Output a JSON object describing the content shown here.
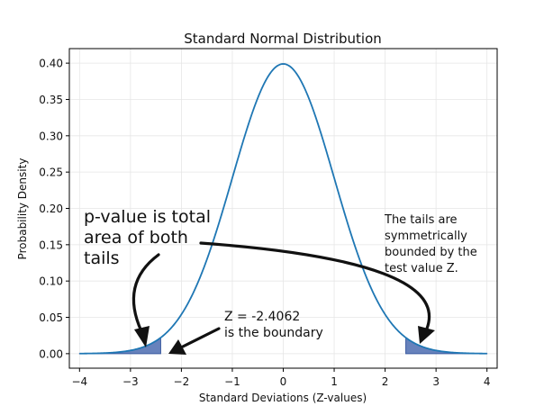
{
  "chart_data": {
    "type": "line",
    "title": "Standard Normal Distribution",
    "xlabel": "Standard Deviations (Z-values)",
    "ylabel": "Probability Density",
    "xlim": [
      -4.2,
      4.2
    ],
    "ylim": [
      -0.02,
      0.42
    ],
    "x_ticks": [
      -4,
      -3,
      -2,
      -1,
      0,
      1,
      2,
      3,
      4
    ],
    "x_tick_labels": [
      "−4",
      "−3",
      "−2",
      "−1",
      "0",
      "1",
      "2",
      "3",
      "4"
    ],
    "y_ticks": [
      0.0,
      0.05,
      0.1,
      0.15,
      0.2,
      0.25,
      0.3,
      0.35,
      0.4
    ],
    "y_tick_labels": [
      "0.00",
      "0.05",
      "0.10",
      "0.15",
      "0.20",
      "0.25",
      "0.30",
      "0.35",
      "0.40"
    ],
    "grid": true,
    "series": [
      {
        "curve": "standard-normal-pdf",
        "x_range": [
          -4,
          4
        ],
        "color": "#1f77b4"
      }
    ],
    "shaded_regions": [
      {
        "x_range": [
          -4,
          -2.4062
        ],
        "color": "#4c6cb0"
      },
      {
        "x_range": [
          2.4062,
          4
        ],
        "color": "#4c6cb0"
      }
    ],
    "annotations": {
      "pvalue_lines": [
        "p-value is total",
        "area of both",
        "tails"
      ],
      "z_lines": [
        "Z = -2.4062",
        "is the boundary"
      ],
      "tails_lines": [
        "The tails are",
        "symmetrically",
        "bounded by the",
        "test value Z."
      ]
    }
  }
}
